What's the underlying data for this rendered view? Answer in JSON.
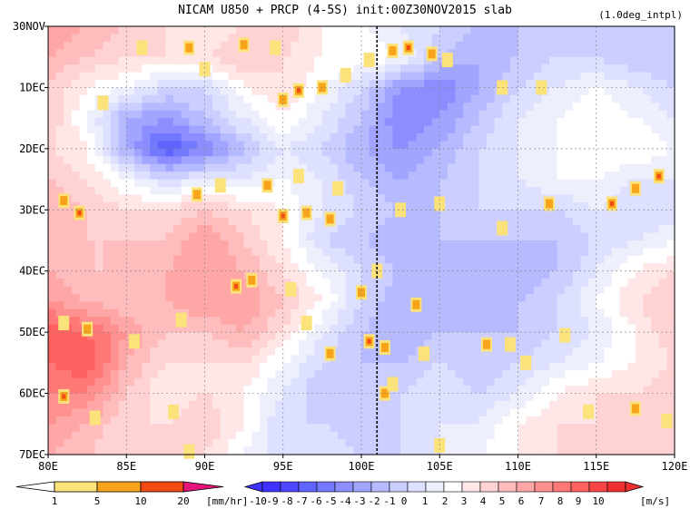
{
  "chart_data": {
    "type": "heatmap",
    "title": "NICAM   U850 + PRCP (4-5S) init:00Z30NOV2015 slab",
    "subtitle": "(1.0deg_intpl)",
    "x_axis": {
      "range": [
        80,
        120
      ],
      "tick_values": [
        80,
        85,
        90,
        95,
        100,
        105,
        110,
        115,
        120
      ],
      "tick_labels": [
        "80E",
        "85E",
        "90E",
        "95E",
        "100E",
        "105E",
        "110E",
        "115E",
        "120E"
      ]
    },
    "y_axis": {
      "range": [
        0,
        7
      ],
      "reversed": true,
      "tick_values": [
        0,
        1,
        2,
        3,
        4,
        5,
        6,
        7
      ],
      "tick_labels": [
        "30NOV",
        "1DEC",
        "2DEC",
        "3DEC",
        "4DEC",
        "5DEC",
        "6DEC",
        "7DEC"
      ]
    },
    "grid": true,
    "reference_line_x": 101,
    "u850_field": {
      "lon": [
        80,
        82.5,
        85,
        87.5,
        90,
        92.5,
        95,
        97.5,
        100,
        102.5,
        105,
        107.5,
        110,
        112.5,
        115,
        117.5,
        120
      ],
      "day": [
        0,
        0.5,
        1,
        1.5,
        2,
        2.5,
        3,
        3.5,
        4,
        4.5,
        5,
        5.5,
        6,
        6.5,
        7
      ],
      "values": [
        [
          5,
          4,
          3,
          2,
          1,
          2,
          3,
          1,
          0,
          -1,
          -2,
          -3,
          -3,
          -3,
          -2,
          -2,
          -3
        ],
        [
          4,
          3,
          2,
          2,
          2,
          3,
          2,
          1,
          1,
          0,
          -3,
          -4,
          -3,
          -2,
          -2,
          -3,
          -3
        ],
        [
          3,
          1,
          0,
          -2,
          -2,
          1,
          2,
          0,
          -2,
          -5,
          -6,
          -4,
          -2,
          -1,
          0,
          -1,
          -2
        ],
        [
          3,
          0,
          -4,
          -5,
          -3,
          -1,
          1,
          -1,
          -3,
          -6,
          -5,
          -3,
          -1,
          0,
          1,
          0,
          -1
        ],
        [
          2,
          1,
          -4,
          -8,
          -6,
          -3,
          -1,
          -2,
          -4,
          -5,
          -4,
          -2,
          -1,
          0,
          1,
          1,
          0
        ],
        [
          3,
          2,
          0,
          -2,
          -1,
          -1,
          0,
          -1,
          -3,
          -4,
          -3,
          -2,
          -1,
          0,
          0,
          -1,
          -1
        ],
        [
          4,
          3,
          2,
          2,
          3,
          2,
          1,
          -1,
          -2,
          -3,
          -3,
          -2,
          -2,
          -2,
          -1,
          -2,
          -2
        ],
        [
          3,
          3,
          3,
          3,
          5,
          3,
          1,
          -2,
          -3,
          -4,
          -3,
          -3,
          -3,
          -3,
          -2,
          -1,
          0
        ],
        [
          4,
          3,
          3,
          4,
          5,
          4,
          2,
          0,
          -2,
          -3,
          -4,
          -4,
          -4,
          -3,
          -1,
          1,
          2
        ],
        [
          5,
          4,
          3,
          4,
          5,
          5,
          3,
          1,
          -2,
          -4,
          -4,
          -4,
          -3,
          -2,
          0,
          2,
          3
        ],
        [
          8,
          7,
          5,
          3,
          3,
          4,
          2,
          -1,
          -3,
          -4,
          -3,
          -3,
          -3,
          -2,
          -1,
          1,
          3
        ],
        [
          7,
          8,
          4,
          2,
          2,
          2,
          0,
          -2,
          -3,
          -3,
          -2,
          -3,
          -2,
          -1,
          0,
          1,
          2
        ],
        [
          6,
          6,
          3,
          1,
          2,
          1,
          -1,
          -3,
          -3,
          -2,
          -1,
          -2,
          -1,
          1,
          2,
          2,
          3
        ],
        [
          5,
          4,
          2,
          2,
          3,
          1,
          -2,
          -2,
          -3,
          -2,
          -1,
          -1,
          1,
          2,
          2,
          3,
          3
        ],
        [
          4,
          3,
          2,
          2,
          2,
          0,
          -2,
          -1,
          -2,
          -2,
          -1,
          0,
          1,
          2,
          2,
          2,
          3
        ]
      ]
    },
    "prcp_cells": [
      [
        86,
        0.35,
        1
      ],
      [
        89,
        0.35,
        2
      ],
      [
        90,
        0.7,
        1
      ],
      [
        92.5,
        0.3,
        2
      ],
      [
        94.5,
        0.35,
        1
      ],
      [
        95,
        1.2,
        2
      ],
      [
        96,
        1.05,
        3
      ],
      [
        97.5,
        1.0,
        2
      ],
      [
        99,
        0.8,
        1
      ],
      [
        100.5,
        0.55,
        1
      ],
      [
        102,
        0.4,
        2
      ],
      [
        103,
        0.35,
        3
      ],
      [
        104.5,
        0.45,
        2
      ],
      [
        105.5,
        0.55,
        1
      ],
      [
        83.5,
        1.25,
        1
      ],
      [
        109,
        1.0,
        1
      ],
      [
        111.5,
        1.0,
        1
      ],
      [
        94,
        2.6,
        2
      ],
      [
        96,
        2.45,
        1
      ],
      [
        89.5,
        2.75,
        2
      ],
      [
        91,
        2.6,
        1
      ],
      [
        98.5,
        2.65,
        1
      ],
      [
        81,
        2.85,
        2
      ],
      [
        82,
        3.05,
        3
      ],
      [
        95,
        3.1,
        3
      ],
      [
        96.5,
        3.05,
        2
      ],
      [
        98,
        3.15,
        2
      ],
      [
        102.5,
        3.0,
        1
      ],
      [
        105,
        2.9,
        1
      ],
      [
        109,
        3.3,
        1
      ],
      [
        112,
        2.9,
        2
      ],
      [
        116,
        2.9,
        3
      ],
      [
        117.5,
        2.65,
        2
      ],
      [
        119,
        2.45,
        3
      ],
      [
        92,
        4.25,
        3
      ],
      [
        93,
        4.15,
        2
      ],
      [
        95.5,
        4.3,
        1
      ],
      [
        100,
        4.35,
        2
      ],
      [
        101,
        4.0,
        1
      ],
      [
        103.5,
        4.55,
        2
      ],
      [
        81,
        4.85,
        1
      ],
      [
        82.5,
        4.95,
        2
      ],
      [
        85.5,
        5.15,
        1
      ],
      [
        88.5,
        4.8,
        1
      ],
      [
        96.5,
        4.85,
        1
      ],
      [
        100.5,
        5.15,
        3
      ],
      [
        101.5,
        5.25,
        2
      ],
      [
        98,
        5.35,
        2
      ],
      [
        104,
        5.35,
        1
      ],
      [
        108,
        5.2,
        2
      ],
      [
        109.5,
        5.2,
        1
      ],
      [
        113,
        5.05,
        1
      ],
      [
        110.5,
        5.5,
        1
      ],
      [
        101.5,
        6.0,
        2
      ],
      [
        102,
        5.85,
        1
      ],
      [
        81,
        6.05,
        3
      ],
      [
        83,
        6.4,
        1
      ],
      [
        88,
        6.3,
        1
      ],
      [
        114.5,
        6.3,
        1
      ],
      [
        117.5,
        6.25,
        2
      ],
      [
        119.5,
        6.45,
        1
      ],
      [
        105,
        6.85,
        1
      ],
      [
        89,
        6.95,
        1
      ]
    ],
    "u850_colorbar": {
      "labels": [
        "-10",
        "-9",
        "-8",
        "-7",
        "-6",
        "-5",
        "-4",
        "-3",
        "-2",
        "-1",
        "0",
        "1",
        "2",
        "3",
        "4",
        "5",
        "6",
        "7",
        "8",
        "9",
        "10"
      ],
      "unit": "[m/s]",
      "colors": [
        "#3f32ff",
        "#4f46ff",
        "#6064ff",
        "#7379ff",
        "#8c8eff",
        "#a1a5ff",
        "#b6baff",
        "#cbceff",
        "#dee0ff",
        "#eeeffd",
        "#ffffff",
        "#ffe7e7",
        "#ffd3d3",
        "#ffbcbc",
        "#ffa7a7",
        "#ff9090",
        "#ff7878",
        "#ff6060",
        "#f84444",
        "#f03030"
      ]
    },
    "prcp_colorbar": {
      "labels": [
        "1",
        "5",
        "10",
        "20"
      ],
      "unit": "[mm/hr]",
      "colors": [
        "#ffffff",
        "#fbe27a",
        "#f7a41a",
        "#f34a14",
        "#e6157c"
      ]
    }
  }
}
